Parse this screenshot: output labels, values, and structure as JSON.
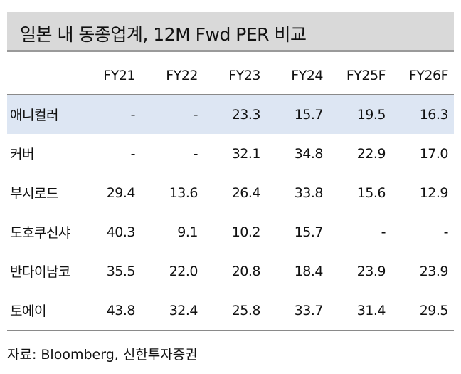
{
  "title": "일본 내 동종업계, 12M Fwd PER 비교",
  "columns": [
    "",
    "FY21",
    "FY22",
    "FY23",
    "FY24",
    "FY25F",
    "FY26F"
  ],
  "rows": [
    {
      "name": "애니컬러",
      "values": [
        "-",
        "-",
        "23.3",
        "15.7",
        "19.5",
        "16.3"
      ]
    },
    {
      "name": "커버",
      "values": [
        "-",
        "-",
        "32.1",
        "34.8",
        "22.9",
        "17.0"
      ]
    },
    {
      "name": "부시로드",
      "values": [
        "29.4",
        "13.6",
        "26.4",
        "33.8",
        "15.6",
        "12.9"
      ]
    },
    {
      "name": "도호쿠신샤",
      "values": [
        "40.3",
        "9.1",
        "10.2",
        "15.7",
        "-",
        "-"
      ]
    },
    {
      "name": "반다이남코",
      "values": [
        "35.5",
        "22.0",
        "20.8",
        "18.4",
        "23.9",
        "23.9"
      ]
    },
    {
      "name": "토에이",
      "values": [
        "43.8",
        "32.4",
        "25.8",
        "33.7",
        "31.4",
        "29.5"
      ]
    }
  ],
  "highlight_color": "#dde6f3",
  "source": "자료: Bloomberg, 신한투자증권"
}
